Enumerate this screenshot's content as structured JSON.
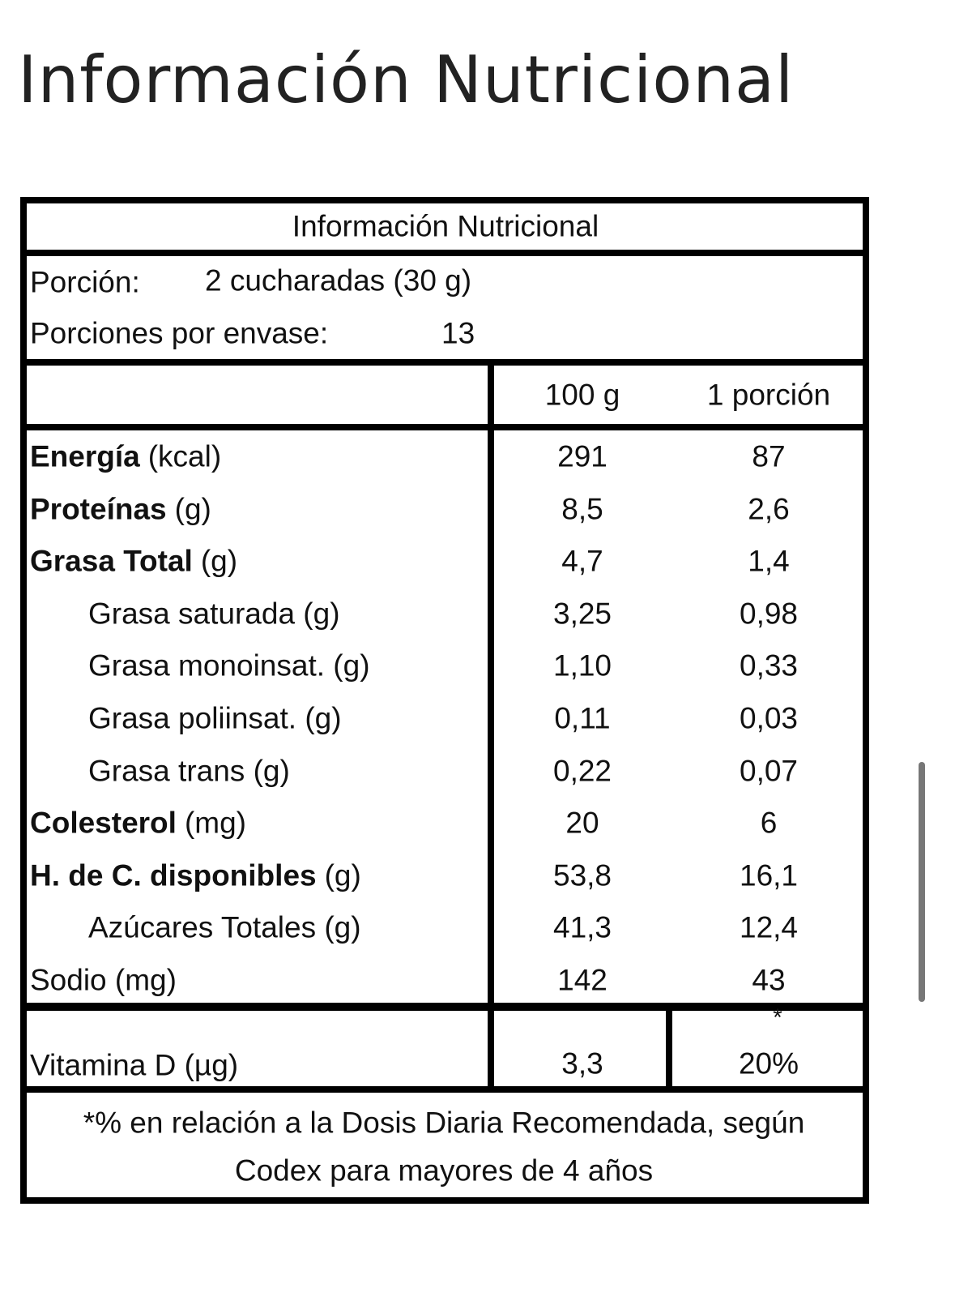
{
  "page_title": "Información Nutricional",
  "table": {
    "title": "Información Nutricional",
    "serving": {
      "label": "Porción:",
      "value": "2 cucharadas (30 g)"
    },
    "servings_per_container": {
      "label": "Porciones por envase:",
      "value": "13"
    },
    "headers": [
      "100 g",
      "1 porción"
    ],
    "rows": [
      {
        "bold": "Energía",
        "label": "(kcal)",
        "values": [
          "291",
          "87"
        ]
      },
      {
        "bold": "Proteínas",
        "label": "(g)",
        "values": [
          "8,5",
          "2,6"
        ]
      },
      {
        "bold": "Grasa Total",
        "label": "(g)",
        "values": [
          "4,7",
          "1,4"
        ],
        "sub": [
          {
            "label": "Grasa saturada (g)",
            "values": [
              "3,25",
              "0,98"
            ]
          },
          {
            "label": "Grasa monoinsat. (g)",
            "values": [
              "1,10",
              "0,33"
            ]
          },
          {
            "label": "Grasa poliinsat. (g)",
            "values": [
              "0,11",
              "0,03"
            ]
          },
          {
            "label": "Grasa trans (g)",
            "values": [
              "0,22",
              "0,07"
            ]
          }
        ]
      },
      {
        "bold": "Colesterol",
        "label": "(mg)",
        "values": [
          "20",
          "6"
        ]
      },
      {
        "bold": "H. de C. disponibles",
        "label": "(g)",
        "values": [
          "53,8",
          "16,1"
        ],
        "sub": [
          {
            "label": "Azúcares Totales (g)",
            "values": [
              "41,3",
              "12,4"
            ]
          }
        ]
      },
      {
        "label": "Sodio (mg)",
        "values": [
          "142",
          "43"
        ]
      }
    ],
    "vitamin": {
      "label": "Vitamina D (µg)",
      "values": [
        "3,3",
        "20%"
      ],
      "marker": "*"
    },
    "footnote": [
      "*% en relación a la Dosis Diaria Recomendada, según",
      "Codex para mayores de 4 años"
    ]
  }
}
